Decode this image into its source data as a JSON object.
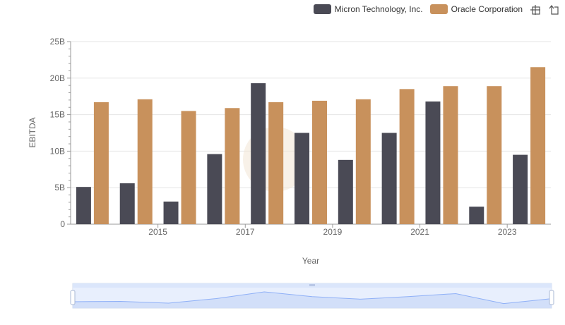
{
  "chart_data": {
    "type": "bar",
    "x": [
      2014,
      2015,
      2016,
      2017,
      2018,
      2019,
      2020,
      2021,
      2022,
      2023,
      2024
    ],
    "x_tick_labels": [
      "2015",
      "2017",
      "2019",
      "2021",
      "2023"
    ],
    "xlabel": "Year",
    "ylabel": "EBITDA",
    "ylim": [
      0,
      25000000000
    ],
    "y_ticks": [
      {
        "value": 0,
        "label": "0"
      },
      {
        "value": 5000000000,
        "label": "5B"
      },
      {
        "value": 10000000000,
        "label": "10B"
      },
      {
        "value": 15000000000,
        "label": "15B"
      },
      {
        "value": 20000000000,
        "label": "20B"
      },
      {
        "value": 25000000000,
        "label": "25B"
      }
    ],
    "grid": true,
    "legend_position": "top-right",
    "series": [
      {
        "name": "Micron Technology, Inc.",
        "color": "#4a4a55",
        "values": [
          5100000000,
          5600000000,
          3100000000,
          9600000000,
          19300000000,
          12500000000,
          8800000000,
          12500000000,
          16800000000,
          2400000000,
          9500000000
        ]
      },
      {
        "name": "Oracle Corporation",
        "color": "#c8915c",
        "values": [
          16700000000,
          17100000000,
          15500000000,
          15900000000,
          16700000000,
          16900000000,
          17100000000,
          18500000000,
          18900000000,
          18900000000,
          21500000000
        ]
      }
    ]
  },
  "toolbox": {
    "icons": [
      "zoom-icon",
      "restore-icon"
    ]
  },
  "datazoom": {
    "range": [
      0,
      100
    ],
    "accent": "#8fb0f7"
  }
}
